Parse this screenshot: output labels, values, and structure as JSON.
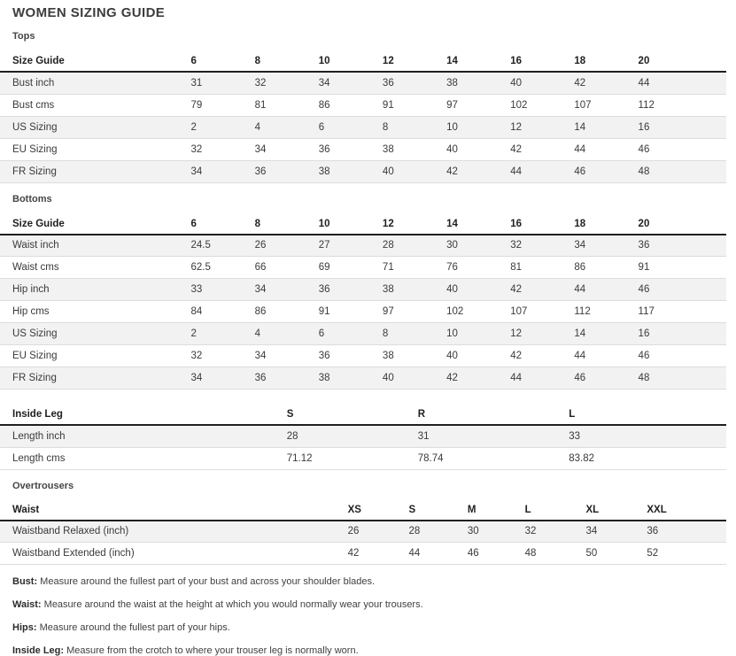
{
  "page": {
    "title": "WOMEN SIZING GUIDE"
  },
  "colors": {
    "stripe": "#f2f2f2",
    "header_border": "#1f1f1f",
    "row_border": "#dcdcdc",
    "text": "#3a3a3a"
  },
  "tables": [
    {
      "id": "tops",
      "section_label": "Tops",
      "header": [
        "Size Guide",
        "6",
        "8",
        "10",
        "12",
        "14",
        "16",
        "18",
        "20"
      ],
      "rows": [
        {
          "label": "Bust inch",
          "values": [
            "31",
            "32",
            "34",
            "36",
            "38",
            "40",
            "42",
            "44"
          ]
        },
        {
          "label": "Bust cms",
          "values": [
            "79",
            "81",
            "86",
            "91",
            "97",
            "102",
            "107",
            "112"
          ]
        },
        {
          "label": "US Sizing",
          "values": [
            "2",
            "4",
            "6",
            "8",
            "10",
            "12",
            "14",
            "16"
          ]
        },
        {
          "label": "EU Sizing",
          "values": [
            "32",
            "34",
            "36",
            "38",
            "40",
            "42",
            "44",
            "46"
          ]
        },
        {
          "label": "FR Sizing",
          "values": [
            "34",
            "36",
            "38",
            "40",
            "42",
            "44",
            "46",
            "48"
          ]
        }
      ]
    },
    {
      "id": "bottoms",
      "section_label": "Bottoms",
      "header": [
        "Size Guide",
        "6",
        "8",
        "10",
        "12",
        "14",
        "16",
        "18",
        "20"
      ],
      "rows": [
        {
          "label": "Waist inch",
          "values": [
            "24.5",
            "26",
            "27",
            "28",
            "30",
            "32",
            "34",
            "36"
          ]
        },
        {
          "label": "Waist cms",
          "values": [
            "62.5",
            "66",
            "69",
            "71",
            "76",
            "81",
            "86",
            "91"
          ]
        },
        {
          "label": "Hip inch",
          "values": [
            "33",
            "34",
            "36",
            "38",
            "40",
            "42",
            "44",
            "46"
          ]
        },
        {
          "label": "Hip cms",
          "values": [
            "84",
            "86",
            "91",
            "97",
            "102",
            "107",
            "112",
            "117"
          ]
        },
        {
          "label": "US Sizing",
          "values": [
            "2",
            "4",
            "6",
            "8",
            "10",
            "12",
            "14",
            "16"
          ]
        },
        {
          "label": "EU Sizing",
          "values": [
            "32",
            "34",
            "36",
            "38",
            "40",
            "42",
            "44",
            "46"
          ]
        },
        {
          "label": "FR Sizing",
          "values": [
            "34",
            "36",
            "38",
            "40",
            "42",
            "44",
            "46",
            "48"
          ]
        }
      ]
    },
    {
      "id": "inside_leg",
      "section_label": null,
      "header": [
        "Inside Leg",
        "S",
        "R",
        "L"
      ],
      "rows": [
        {
          "label": "Length inch",
          "values": [
            "28",
            "31",
            "33"
          ]
        },
        {
          "label": "Length cms",
          "values": [
            "71.12",
            "78.74",
            "83.82"
          ]
        }
      ]
    },
    {
      "id": "overtrousers",
      "section_label": "Overtrousers",
      "header": [
        "Waist",
        "XS",
        "S",
        "M",
        "L",
        "XL",
        "XXL"
      ],
      "rows": [
        {
          "label": "Waistband Relaxed (inch)",
          "values": [
            "26",
            "28",
            "30",
            "32",
            "34",
            "36"
          ]
        },
        {
          "label": "Waistband Extended (inch)",
          "values": [
            "42",
            "44",
            "46",
            "48",
            "50",
            "52"
          ]
        }
      ]
    }
  ],
  "notes": [
    {
      "term": "Bust:",
      "text": "Measure around the fullest part of your bust and across your shoulder blades."
    },
    {
      "term": "Waist:",
      "text": "Measure around the waist at the height at which you would normally wear your trousers."
    },
    {
      "term": "Hips:",
      "text": "Measure around the fullest part of your hips."
    },
    {
      "term": "Inside Leg:",
      "text": "Measure from the crotch to where your trouser leg is normally worn."
    }
  ]
}
